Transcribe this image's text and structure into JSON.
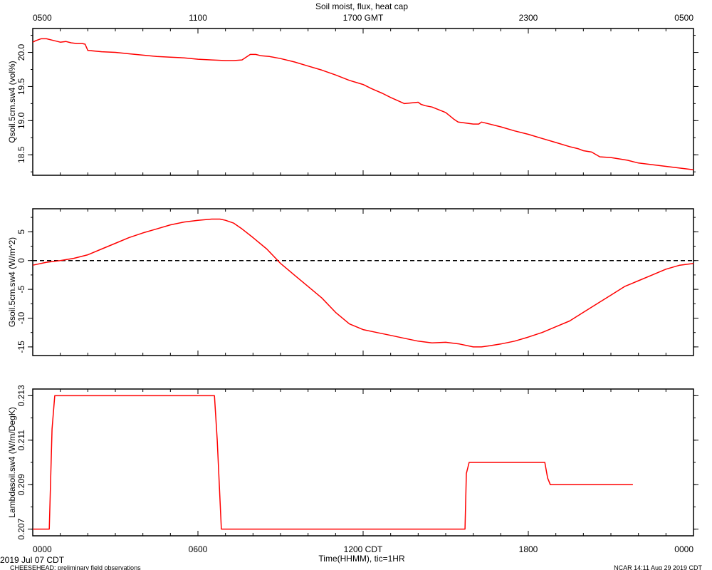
{
  "title": "Soil moist, flux, heat cap",
  "top_axis": {
    "tick_labels": [
      "0500",
      "1100",
      "1700 GMT",
      "2300",
      "0500"
    ]
  },
  "bottom_axis": {
    "tick_labels": [
      "0000",
      "0600",
      "1200 CDT",
      "1800",
      "0000"
    ],
    "xlabel": "Time(HHMM), tic=1HR",
    "date_label": "2019 Jul 07 CDT"
  },
  "footer": {
    "left": "CHEESEHEAD: preliminary field observations",
    "right": "NCAR 14:11 Aug 29 2019 CDT"
  },
  "line_color": "#ff0000",
  "chart_data": [
    {
      "type": "line",
      "ylabel": "Qsoil.5cm.sw4 (vol%)",
      "ylim": [
        18.2,
        20.35
      ],
      "yticks": [
        18.5,
        19.0,
        19.5,
        20.0
      ],
      "ytick_labels": [
        "18.5",
        "19.0",
        "19.5",
        "20.0"
      ],
      "xlim": [
        0,
        24
      ],
      "series": [
        {
          "x": [
            0,
            0.1,
            0.3,
            0.5,
            0.7,
            0.9,
            1.0,
            1.2,
            1.4,
            1.6,
            1.8,
            1.9,
            2.0,
            2.5,
            3.0,
            3.5,
            4.0,
            4.5,
            5.0,
            5.5,
            6.0,
            6.5,
            7.0,
            7.3,
            7.6,
            7.9,
            8.1,
            8.3,
            8.6,
            9.0,
            9.5,
            10.0,
            10.5,
            11.0,
            11.5,
            12.0,
            12.3,
            12.7,
            13.0,
            13.5,
            14.0,
            14.1,
            14.25,
            14.5,
            15.0,
            15.3,
            15.45,
            16.0,
            16.2,
            16.3,
            16.5,
            17.0,
            17.5,
            18.0,
            18.5,
            19.0,
            19.5,
            19.8,
            20.0,
            20.3,
            20.6,
            21.0,
            21.6,
            22.0,
            23.0,
            24.0
          ],
          "y": [
            20.15,
            20.17,
            20.2,
            20.2,
            20.18,
            20.16,
            20.15,
            20.16,
            20.14,
            20.13,
            20.13,
            20.12,
            20.03,
            20.01,
            20.0,
            19.98,
            19.96,
            19.94,
            19.93,
            19.92,
            19.9,
            19.89,
            19.88,
            19.88,
            19.89,
            19.97,
            19.97,
            19.95,
            19.94,
            19.91,
            19.86,
            19.8,
            19.74,
            19.67,
            19.59,
            19.53,
            19.47,
            19.4,
            19.34,
            19.25,
            19.27,
            19.24,
            19.22,
            19.2,
            19.12,
            19.02,
            18.98,
            18.95,
            18.95,
            18.98,
            18.96,
            18.91,
            18.85,
            18.8,
            18.74,
            18.68,
            18.62,
            18.59,
            18.56,
            18.54,
            18.47,
            18.46,
            18.42,
            18.38,
            18.33,
            18.28
          ]
        }
      ]
    },
    {
      "type": "line",
      "ylabel": "Gsoil.5cm.sw4 (W/m^2)",
      "ylim": [
        -16.5,
        9
      ],
      "yticks": [
        -15,
        -10,
        -5,
        0,
        5
      ],
      "ytick_labels": [
        "-15",
        "-10",
        "-5",
        "0",
        "5"
      ],
      "xlim": [
        0,
        24
      ],
      "reference_line_y": 0,
      "series": [
        {
          "x": [
            0,
            0.5,
            1.0,
            1.5,
            2.0,
            2.5,
            3.0,
            3.5,
            4.0,
            4.5,
            5.0,
            5.5,
            6.0,
            6.5,
            6.8,
            7.0,
            7.3,
            7.6,
            8.0,
            8.5,
            9.0,
            9.5,
            10.0,
            10.5,
            11.0,
            11.5,
            12.0,
            12.5,
            13.0,
            13.5,
            14.0,
            14.5,
            15.0,
            15.5,
            16.0,
            16.3,
            16.6,
            17.0,
            17.5,
            18.0,
            18.5,
            19.0,
            19.5,
            20.0,
            20.5,
            21.0,
            21.5,
            22.0,
            22.5,
            23.0,
            23.5,
            24.0
          ],
          "y": [
            -0.8,
            -0.3,
            0.0,
            0.4,
            1.0,
            2.0,
            3.0,
            4.0,
            4.8,
            5.5,
            6.2,
            6.7,
            7.0,
            7.2,
            7.2,
            7.0,
            6.5,
            5.5,
            4.0,
            2.0,
            -0.5,
            -2.5,
            -4.5,
            -6.5,
            -9.0,
            -11.0,
            -12.0,
            -12.5,
            -13.0,
            -13.5,
            -14.0,
            -14.3,
            -14.2,
            -14.5,
            -15.0,
            -15.0,
            -14.8,
            -14.5,
            -14.0,
            -13.3,
            -12.5,
            -11.5,
            -10.5,
            -9.0,
            -7.5,
            -6.0,
            -4.5,
            -3.5,
            -2.5,
            -1.5,
            -0.8,
            -0.5
          ]
        }
      ]
    },
    {
      "type": "line",
      "ylabel": "Lambdasoil.sw4 (W/m/DegK)",
      "ylim": [
        0.2067,
        0.2133
      ],
      "yticks": [
        0.207,
        0.209,
        0.211,
        0.213
      ],
      "ytick_labels": [
        "0.207",
        "0.209",
        "0.211",
        "0.213"
      ],
      "xlim": [
        0,
        24
      ],
      "series": [
        {
          "x": [
            0,
            0.6,
            0.7,
            0.8,
            6.6,
            6.7,
            6.85,
            15.7,
            15.75,
            15.85,
            18.6,
            18.7,
            18.8,
            21.8
          ],
          "y": [
            0.207,
            0.207,
            0.2115,
            0.213,
            0.213,
            0.211,
            0.207,
            0.207,
            0.2095,
            0.21,
            0.21,
            0.2093,
            0.209,
            0.209
          ]
        }
      ]
    }
  ]
}
